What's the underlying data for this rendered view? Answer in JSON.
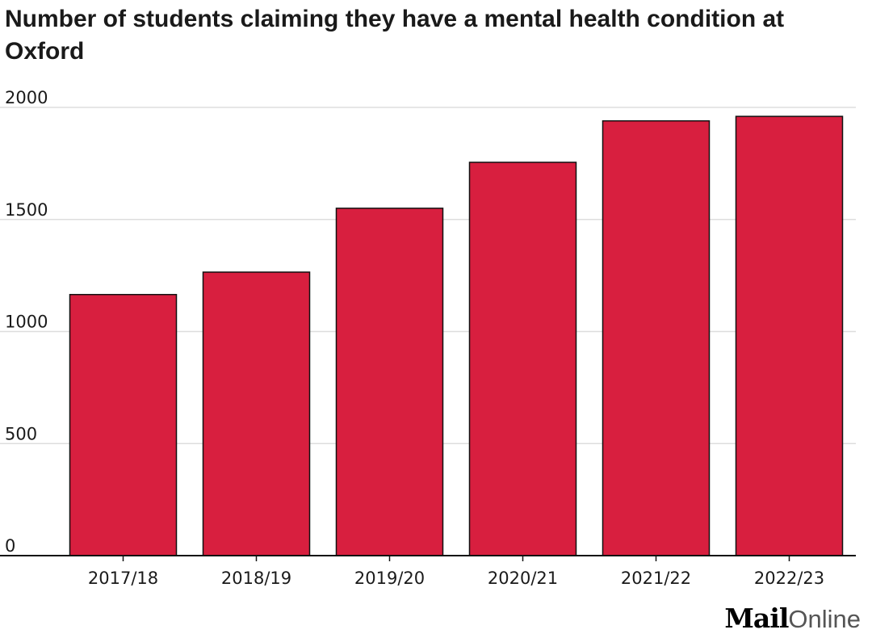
{
  "title": "Number of students claiming they have a mental health condition at Oxford",
  "colors": {
    "bar": "#d81f3f",
    "bar_outline": "#111111",
    "grid": "#dddddd",
    "axis": "#111111"
  },
  "chart_data": {
    "type": "bar",
    "title": "Number of students claiming they have a mental health condition at Oxford",
    "categories": [
      "2017/18",
      "2018/19",
      "2019/20",
      "2020/21",
      "2021/22",
      "2022/23"
    ],
    "values": [
      1165,
      1265,
      1550,
      1755,
      1940,
      1960
    ],
    "ylim": [
      0,
      2000
    ],
    "yticks": [
      "0",
      "500",
      "1000",
      "1500",
      "2000"
    ],
    "xlabel": "",
    "ylabel": "",
    "grid": true
  },
  "logo": {
    "mail": "Mail",
    "online": "Online"
  }
}
